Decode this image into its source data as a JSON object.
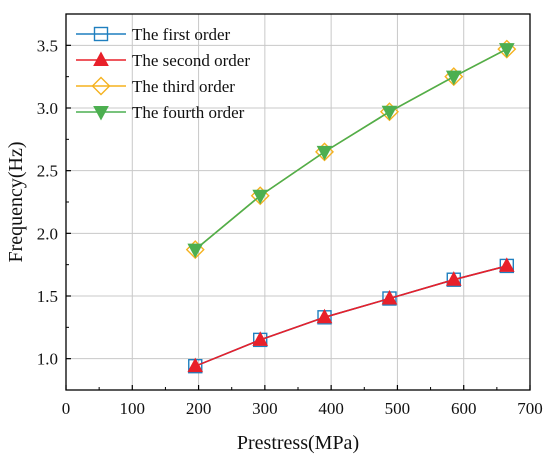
{
  "chart_data": {
    "type": "line",
    "title": "",
    "xlabel": "Prestress(MPa)",
    "ylabel": "Frequency(Hz)",
    "xlim": [
      0,
      700
    ],
    "ylim": [
      0.75,
      3.75
    ],
    "x_ticks": [
      "0",
      "100",
      "200",
      "300",
      "400",
      "500",
      "600",
      "700"
    ],
    "y_ticks": [
      "1.0",
      "1.5",
      "2.0",
      "2.5",
      "3.0",
      "3.5"
    ],
    "grid": true,
    "legend_position": "top-left",
    "series": [
      {
        "name": "The first order",
        "marker": "open-square",
        "color": "#1f7fbf",
        "x": [
          195,
          293,
          390,
          488,
          585,
          665
        ],
        "y": [
          0.94,
          1.15,
          1.33,
          1.48,
          1.63,
          1.74
        ]
      },
      {
        "name": "The second order",
        "marker": "filled-triangle-up",
        "color": "#e8202a",
        "x": [
          195,
          293,
          390,
          488,
          585,
          665
        ],
        "y": [
          0.94,
          1.15,
          1.33,
          1.48,
          1.63,
          1.74
        ]
      },
      {
        "name": "The third order",
        "marker": "open-diamond",
        "color": "#f5b21f",
        "x": [
          195,
          293,
          390,
          488,
          585,
          665
        ],
        "y": [
          1.87,
          2.3,
          2.65,
          2.97,
          3.25,
          3.47
        ]
      },
      {
        "name": "The fourth order",
        "marker": "filled-triangle-down",
        "color": "#4caf50",
        "x": [
          195,
          293,
          390,
          488,
          585,
          665
        ],
        "y": [
          1.87,
          2.3,
          2.65,
          2.97,
          3.25,
          3.47
        ]
      }
    ]
  }
}
